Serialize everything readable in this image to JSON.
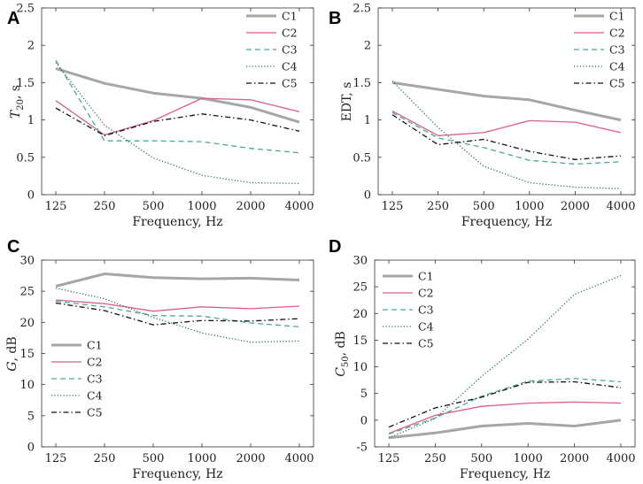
{
  "chart_data": [
    {
      "panel": "A",
      "type": "line",
      "categories": [
        "125",
        "250",
        "500",
        "1000",
        "2000",
        "4000"
      ],
      "xlabel": "Frequency, Hz",
      "ylabel": "T20, s",
      "ylabel_main": "T",
      "ylabel_sub": "20",
      "ylabel_suffix": ", s",
      "ylim": [
        0,
        2.5
      ],
      "yticks": [
        0,
        0.5,
        1,
        1.5,
        2,
        2.5
      ],
      "ytick_labels": [
        "0",
        "0.5",
        "1",
        "1.5",
        "2",
        "2.5"
      ],
      "legend_position": "top-right",
      "series": [
        {
          "name": "C1",
          "values": [
            1.69,
            1.49,
            1.36,
            1.29,
            1.17,
            0.97
          ]
        },
        {
          "name": "C2",
          "values": [
            1.26,
            0.8,
            0.99,
            1.29,
            1.27,
            1.11
          ]
        },
        {
          "name": "C3",
          "values": [
            1.8,
            0.72,
            0.72,
            0.71,
            0.62,
            0.56
          ]
        },
        {
          "name": "C4",
          "values": [
            1.77,
            0.93,
            0.49,
            0.26,
            0.16,
            0.15
          ]
        },
        {
          "name": "C5",
          "values": [
            1.16,
            0.79,
            0.98,
            1.08,
            1.0,
            0.85
          ]
        }
      ]
    },
    {
      "panel": "B",
      "type": "line",
      "categories": [
        "125",
        "250",
        "500",
        "1000",
        "2000",
        "4000"
      ],
      "xlabel": "Frequency, Hz",
      "ylabel": "EDT, s",
      "ylabel_main": "EDT",
      "ylabel_sub": "",
      "ylabel_suffix": ", s",
      "ylim": [
        0,
        2.5
      ],
      "yticks": [
        0,
        0.5,
        1,
        1.5,
        2,
        2.5
      ],
      "ytick_labels": [
        "0",
        "0.5",
        "1",
        "1.5",
        "2",
        "2.5"
      ],
      "legend_position": "top-right",
      "series": [
        {
          "name": "C1",
          "values": [
            1.5,
            1.41,
            1.32,
            1.27,
            1.13,
            1.0
          ]
        },
        {
          "name": "C2",
          "values": [
            1.12,
            0.79,
            0.83,
            0.99,
            0.97,
            0.83
          ]
        },
        {
          "name": "C3",
          "values": [
            1.1,
            0.76,
            0.63,
            0.46,
            0.41,
            0.44
          ]
        },
        {
          "name": "C4",
          "values": [
            1.52,
            0.9,
            0.38,
            0.16,
            0.1,
            0.08
          ]
        },
        {
          "name": "C5",
          "values": [
            1.07,
            0.67,
            0.74,
            0.58,
            0.47,
            0.52
          ]
        }
      ]
    },
    {
      "panel": "C",
      "type": "line",
      "categories": [
        "125",
        "250",
        "500",
        "1000",
        "2000",
        "4000"
      ],
      "xlabel": "Frequency, Hz",
      "ylabel": "G, dB",
      "ylabel_main": "G",
      "ylabel_sub": "",
      "ylabel_suffix": ", dB",
      "ylim": [
        0,
        30
      ],
      "yticks": [
        0,
        5,
        10,
        15,
        20,
        25,
        30
      ],
      "ytick_labels": [
        "0",
        "5",
        "10",
        "15",
        "20",
        "25",
        "30"
      ],
      "legend_position": "bottom-left",
      "series": [
        {
          "name": "C1",
          "values": [
            25.8,
            27.8,
            27.2,
            27.0,
            27.1,
            26.8
          ]
        },
        {
          "name": "C2",
          "values": [
            23.6,
            23.0,
            21.8,
            22.5,
            22.2,
            22.6
          ]
        },
        {
          "name": "C3",
          "values": [
            23.4,
            22.5,
            21.1,
            21.0,
            19.9,
            19.3
          ]
        },
        {
          "name": "C4",
          "values": [
            25.5,
            23.8,
            20.8,
            18.3,
            16.8,
            17.0
          ]
        },
        {
          "name": "C5",
          "values": [
            23.1,
            21.9,
            19.6,
            20.3,
            20.2,
            20.6
          ]
        }
      ]
    },
    {
      "panel": "D",
      "type": "line",
      "categories": [
        "125",
        "250",
        "500",
        "1000",
        "2000",
        "4000"
      ],
      "xlabel": "Frequency, Hz",
      "ylabel": "C50, dB",
      "ylabel_main": "C",
      "ylabel_sub": "50",
      "ylabel_suffix": ", dB",
      "ylim": [
        -5,
        30
      ],
      "yticks": [
        -5,
        0,
        5,
        10,
        15,
        20,
        25,
        30
      ],
      "ytick_labels": [
        "-5",
        "0",
        "5",
        "10",
        "15",
        "20",
        "25",
        "30"
      ],
      "legend_position": "top-left",
      "series": [
        {
          "name": "C1",
          "values": [
            -3.3,
            -2.4,
            -1.1,
            -0.6,
            -1.1,
            0.0
          ]
        },
        {
          "name": "C2",
          "values": [
            -2.5,
            0.9,
            2.6,
            3.2,
            3.4,
            3.2
          ]
        },
        {
          "name": "C3",
          "values": [
            -2.6,
            0.4,
            4.5,
            7.3,
            7.8,
            7.2
          ]
        },
        {
          "name": "C4",
          "values": [
            -3.3,
            0.3,
            8.2,
            15.2,
            23.6,
            27.1
          ]
        },
        {
          "name": "C5",
          "values": [
            -1.3,
            2.3,
            4.3,
            7.1,
            7.2,
            6.1
          ]
        }
      ]
    }
  ],
  "series_style": {
    "C1": {
      "color": "#a6a6a6"
    },
    "C2": {
      "color": "#d95f8a"
    },
    "C3": {
      "color": "#4daa90"
    },
    "C4": {
      "color": "#2e6f6a"
    },
    "C5": {
      "color": "#111111"
    }
  }
}
